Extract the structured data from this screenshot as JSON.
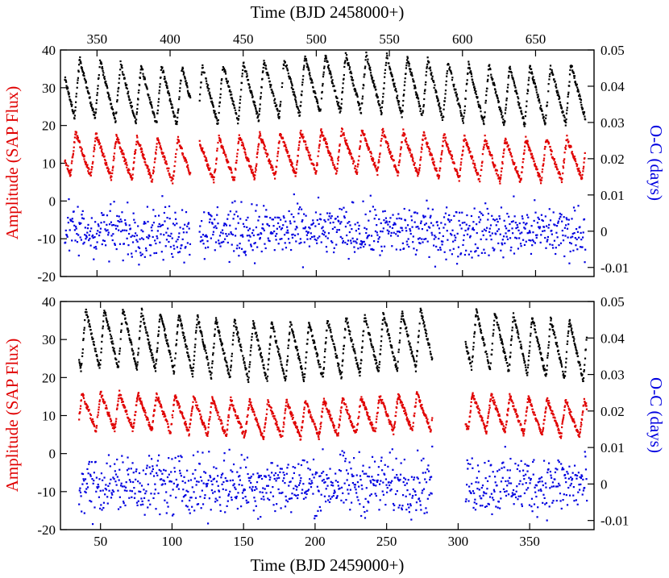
{
  "chart_data": [
    {
      "type": "scatter",
      "panel": "top",
      "xlabel": "Time (BJD 2458000+)",
      "xlabel_position": "top",
      "xlim": [
        325,
        690
      ],
      "x_ticks": [
        350,
        400,
        450,
        500,
        550,
        600,
        650
      ],
      "ylabel_left": "Amplitude (SAP Flux)",
      "ylabel_left_color": "#e00000",
      "ylim_left": [
        -20,
        40
      ],
      "y_ticks_left": [
        -20,
        -10,
        0,
        10,
        20,
        30,
        40
      ],
      "ylabel_right": "O-C (days)",
      "ylabel_right_color": "#0000e0",
      "ylim_right": [
        -0.0125,
        0.05
      ],
      "y_ticks_right": [
        -0.01,
        0,
        0.01,
        0.02,
        0.03,
        0.04,
        0.05
      ],
      "y_tick_labels_right": [
        "-0.01",
        "0",
        "0.01",
        "0.02",
        "0.03",
        "0.04",
        "0.05"
      ],
      "series": [
        {
          "name": "Black",
          "color": "#000000",
          "axis": "left",
          "min": 20,
          "max": 39,
          "period": 14,
          "phase": 0.1,
          "x_start": 328,
          "x_end": 684,
          "gaps": [
            [
              414,
              420
            ]
          ]
        },
        {
          "name": "Red",
          "color": "#e00000",
          "axis": "left",
          "min": 5,
          "max": 19,
          "period": 14,
          "phase": 0.3,
          "x_start": 328,
          "x_end": 684,
          "gaps": [
            [
              414,
              420
            ]
          ]
        },
        {
          "name": "Blue (O-C)",
          "color": "#0000e0",
          "axis": "right",
          "center": 0.0,
          "spread": 0.008,
          "x_start": 328,
          "x_end": 684,
          "gaps": [
            [
              414,
              420
            ]
          ]
        }
      ]
    },
    {
      "type": "scatter",
      "panel": "bottom",
      "xlabel": "Time (BJD 2459000+)",
      "xlabel_position": "bottom",
      "xlim": [
        22,
        395
      ],
      "x_ticks": [
        50,
        100,
        150,
        200,
        250,
        300,
        350
      ],
      "ylabel_left": "Amplitude (SAP Flux)",
      "ylabel_left_color": "#e00000",
      "ylim_left": [
        -20,
        40
      ],
      "y_ticks_left": [
        -20,
        -10,
        0,
        10,
        20,
        30,
        40
      ],
      "ylabel_right": "O-C (days)",
      "ylabel_right_color": "#0000e0",
      "ylim_right": [
        -0.0125,
        0.05
      ],
      "y_ticks_right": [
        -0.01,
        0,
        0.01,
        0.02,
        0.03,
        0.04,
        0.05
      ],
      "y_tick_labels_right": [
        "-0.01",
        "0",
        "0.01",
        "0.02",
        "0.03",
        "0.04",
        "0.05"
      ],
      "series": [
        {
          "name": "Black",
          "color": "#000000",
          "axis": "left",
          "min": 19,
          "max": 38,
          "period": 13,
          "phase": 0.2,
          "x_start": 35,
          "x_end": 390,
          "gaps": [
            [
              282,
              305
            ]
          ]
        },
        {
          "name": "Red",
          "color": "#e00000",
          "axis": "left",
          "min": 4,
          "max": 16,
          "period": 13,
          "phase": 0.4,
          "x_start": 35,
          "x_end": 390,
          "gaps": [
            [
              282,
              305
            ]
          ]
        },
        {
          "name": "Blue (O-C)",
          "color": "#0000e0",
          "axis": "right",
          "center": 0.0,
          "spread": 0.009,
          "x_start": 35,
          "x_end": 390,
          "gaps": [
            [
              282,
              305
            ]
          ]
        }
      ]
    }
  ]
}
